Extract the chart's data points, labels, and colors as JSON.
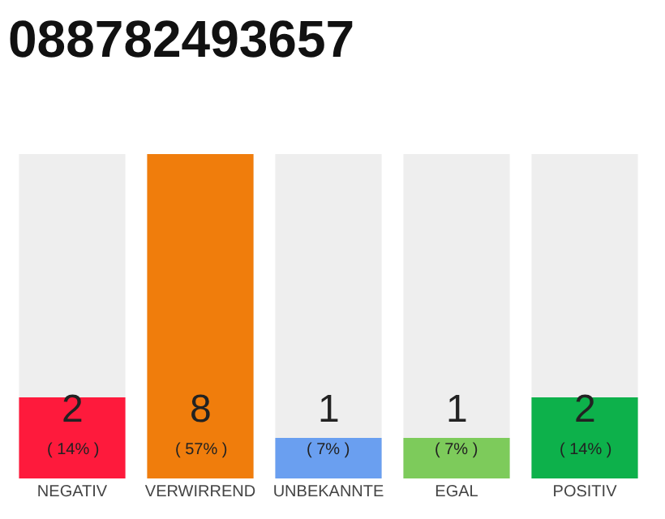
{
  "chart_data": {
    "type": "bar",
    "title": "088782493657",
    "categories": [
      "NEGATIV",
      "VERWIRREND",
      "UNBEKANNTE",
      "EGAL",
      "POSITIV"
    ],
    "values": [
      2,
      8,
      1,
      1,
      2
    ],
    "colors": [
      "#fe1a3c",
      "#f07d0c",
      "#6a9ff0",
      "#7dcb5b",
      "#0db14b"
    ],
    "value_labels": [
      "2\n( 14% )",
      "8\n( 57% )",
      "1\n( 7% )",
      "1\n( 7% )",
      "2\n( 14% )"
    ],
    "grid": false,
    "legend": false
  }
}
